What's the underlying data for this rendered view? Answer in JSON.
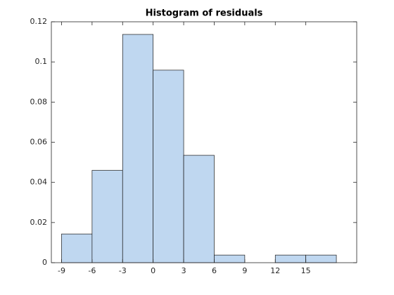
{
  "chart_data": {
    "type": "histogram",
    "title": "Histogram of residuals",
    "bins": [
      -9,
      -6,
      -3,
      0,
      3,
      6,
      9,
      12,
      15,
      18
    ],
    "values": [
      0.0143,
      0.046,
      0.1137,
      0.0959,
      0.0535,
      0.0038,
      0,
      0.0038,
      0.0038
    ],
    "color": "#bfd7f0",
    "edgecolor": "#1a1a1a",
    "xlim": [
      -10,
      20
    ],
    "xticks": [
      -9,
      -6,
      -3,
      0,
      3,
      6,
      9,
      12,
      15
    ],
    "ylim": [
      0,
      0.12
    ],
    "yticks": [
      0,
      0.02,
      0.04,
      0.06,
      0.08,
      0.1,
      0.12
    ],
    "grid": false
  }
}
